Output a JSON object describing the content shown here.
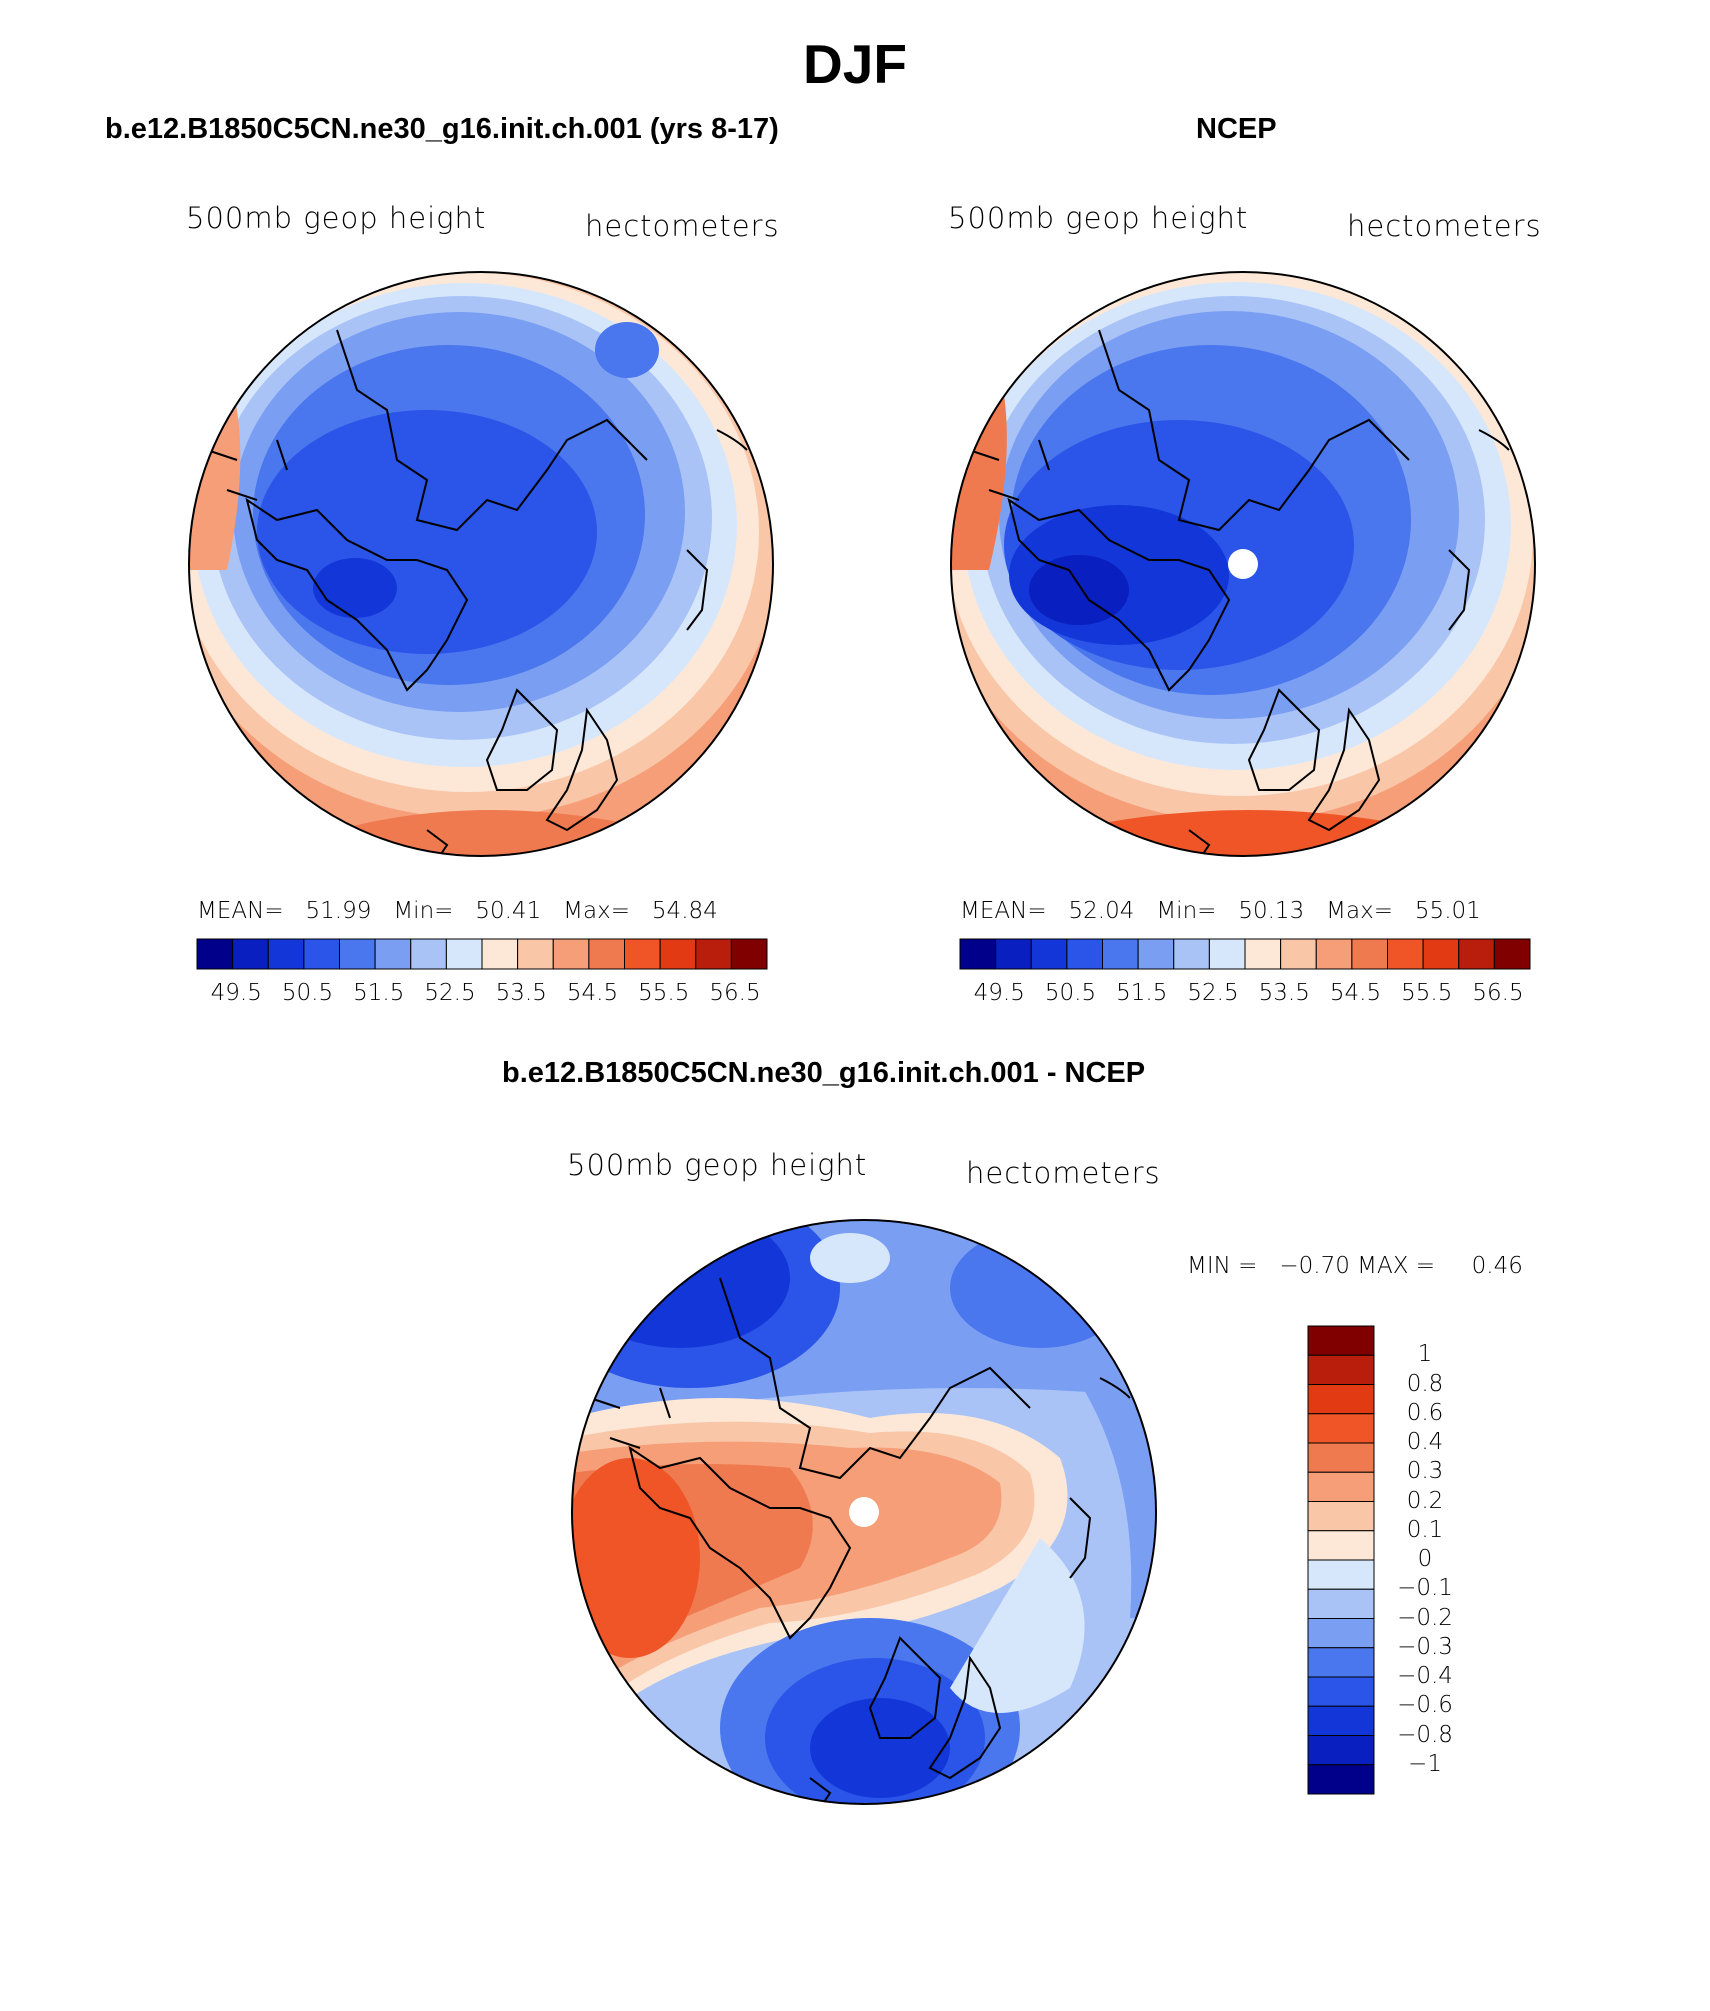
{
  "title": "DJF",
  "panels": [
    {
      "title": "b.e12.B1850C5CN.ne30_g16.init.ch.001 (yrs 8-17)",
      "left_label": "500mb  geop  height",
      "right_label": "hectometers",
      "stats": {
        "mean_label": "MEAN=",
        "mean": "51.99",
        "min_label": "Min=",
        "min": "50.41",
        "max_label": "Max=",
        "max": "54.84"
      }
    },
    {
      "title": "NCEP",
      "left_label": "500mb  geop  height",
      "right_label": "hectometers",
      "stats": {
        "mean_label": "MEAN=",
        "mean": "52.04",
        "min_label": "Min=",
        "min": "50.13",
        "max_label": "Max=",
        "max": "55.01"
      }
    },
    {
      "title": "b.e12.B1850C5CN.ne30_g16.init.ch.001 - NCEP",
      "left_label": "500mb  geop  height",
      "right_label": "hectometers",
      "stats": {
        "min_label": "MIN =",
        "min": "−0.70",
        "max_label": "MAX =",
        "max": "0.46"
      }
    }
  ],
  "colorbar_abs": {
    "colors": [
      "#00008b",
      "#0a1fbf",
      "#1336d8",
      "#2a55e8",
      "#4a76ee",
      "#7a9ef2",
      "#a9c3f7",
      "#d7e7fb",
      "#fde8d8",
      "#f9c6a8",
      "#f59e78",
      "#f07a50",
      "#ef5527",
      "#e23a13",
      "#b91e0c",
      "#800000"
    ],
    "labels": [
      "49.5",
      "50.5",
      "51.5",
      "52.5",
      "53.5",
      "54.5",
      "55.5",
      "56.5"
    ]
  },
  "colorbar_diff": {
    "colors": [
      "#800000",
      "#b91e0c",
      "#e23a13",
      "#ef5527",
      "#f07a50",
      "#f59e78",
      "#f9c6a8",
      "#fde8d8",
      "#d7e7fb",
      "#a9c3f7",
      "#7a9ef2",
      "#4a76ee",
      "#2a55e8",
      "#1336d8",
      "#0a1fbf",
      "#00008b"
    ],
    "labels": [
      "1",
      "0.8",
      "0.6",
      "0.4",
      "0.3",
      "0.2",
      "0.1",
      "0",
      "−0.1",
      "−0.2",
      "−0.3",
      "−0.4",
      "−0.6",
      "−0.8",
      "−1"
    ]
  }
}
